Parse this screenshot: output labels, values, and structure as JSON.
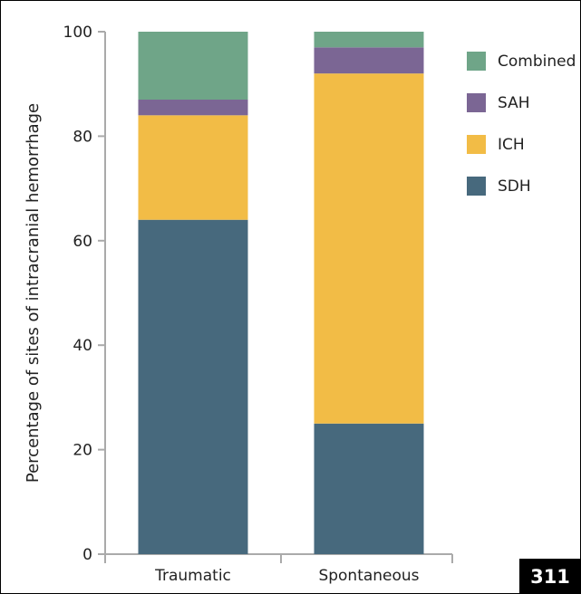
{
  "chart_data": {
    "type": "bar",
    "stacked": true,
    "categories": [
      "Traumatic",
      "Spontaneous"
    ],
    "series": [
      {
        "name": "SDH",
        "color": "#47697d",
        "values": [
          64,
          25
        ]
      },
      {
        "name": "ICH",
        "color": "#f2bc46",
        "values": [
          20,
          67
        ]
      },
      {
        "name": "SAH",
        "color": "#7b6694",
        "values": [
          3,
          5
        ]
      },
      {
        "name": "Combined",
        "color": "#6fa588",
        "values": [
          13,
          3
        ]
      }
    ],
    "ylabel": "Percentage of sites of intracranial hemorrhage",
    "ylim": [
      0,
      100
    ],
    "yticks": [
      0,
      20,
      40,
      60,
      80,
      100
    ],
    "legend": {
      "placement": "right",
      "order": [
        "Combined",
        "SAH",
        "ICH",
        "SDH"
      ]
    },
    "grid": false
  },
  "badge": {
    "text": "311"
  }
}
